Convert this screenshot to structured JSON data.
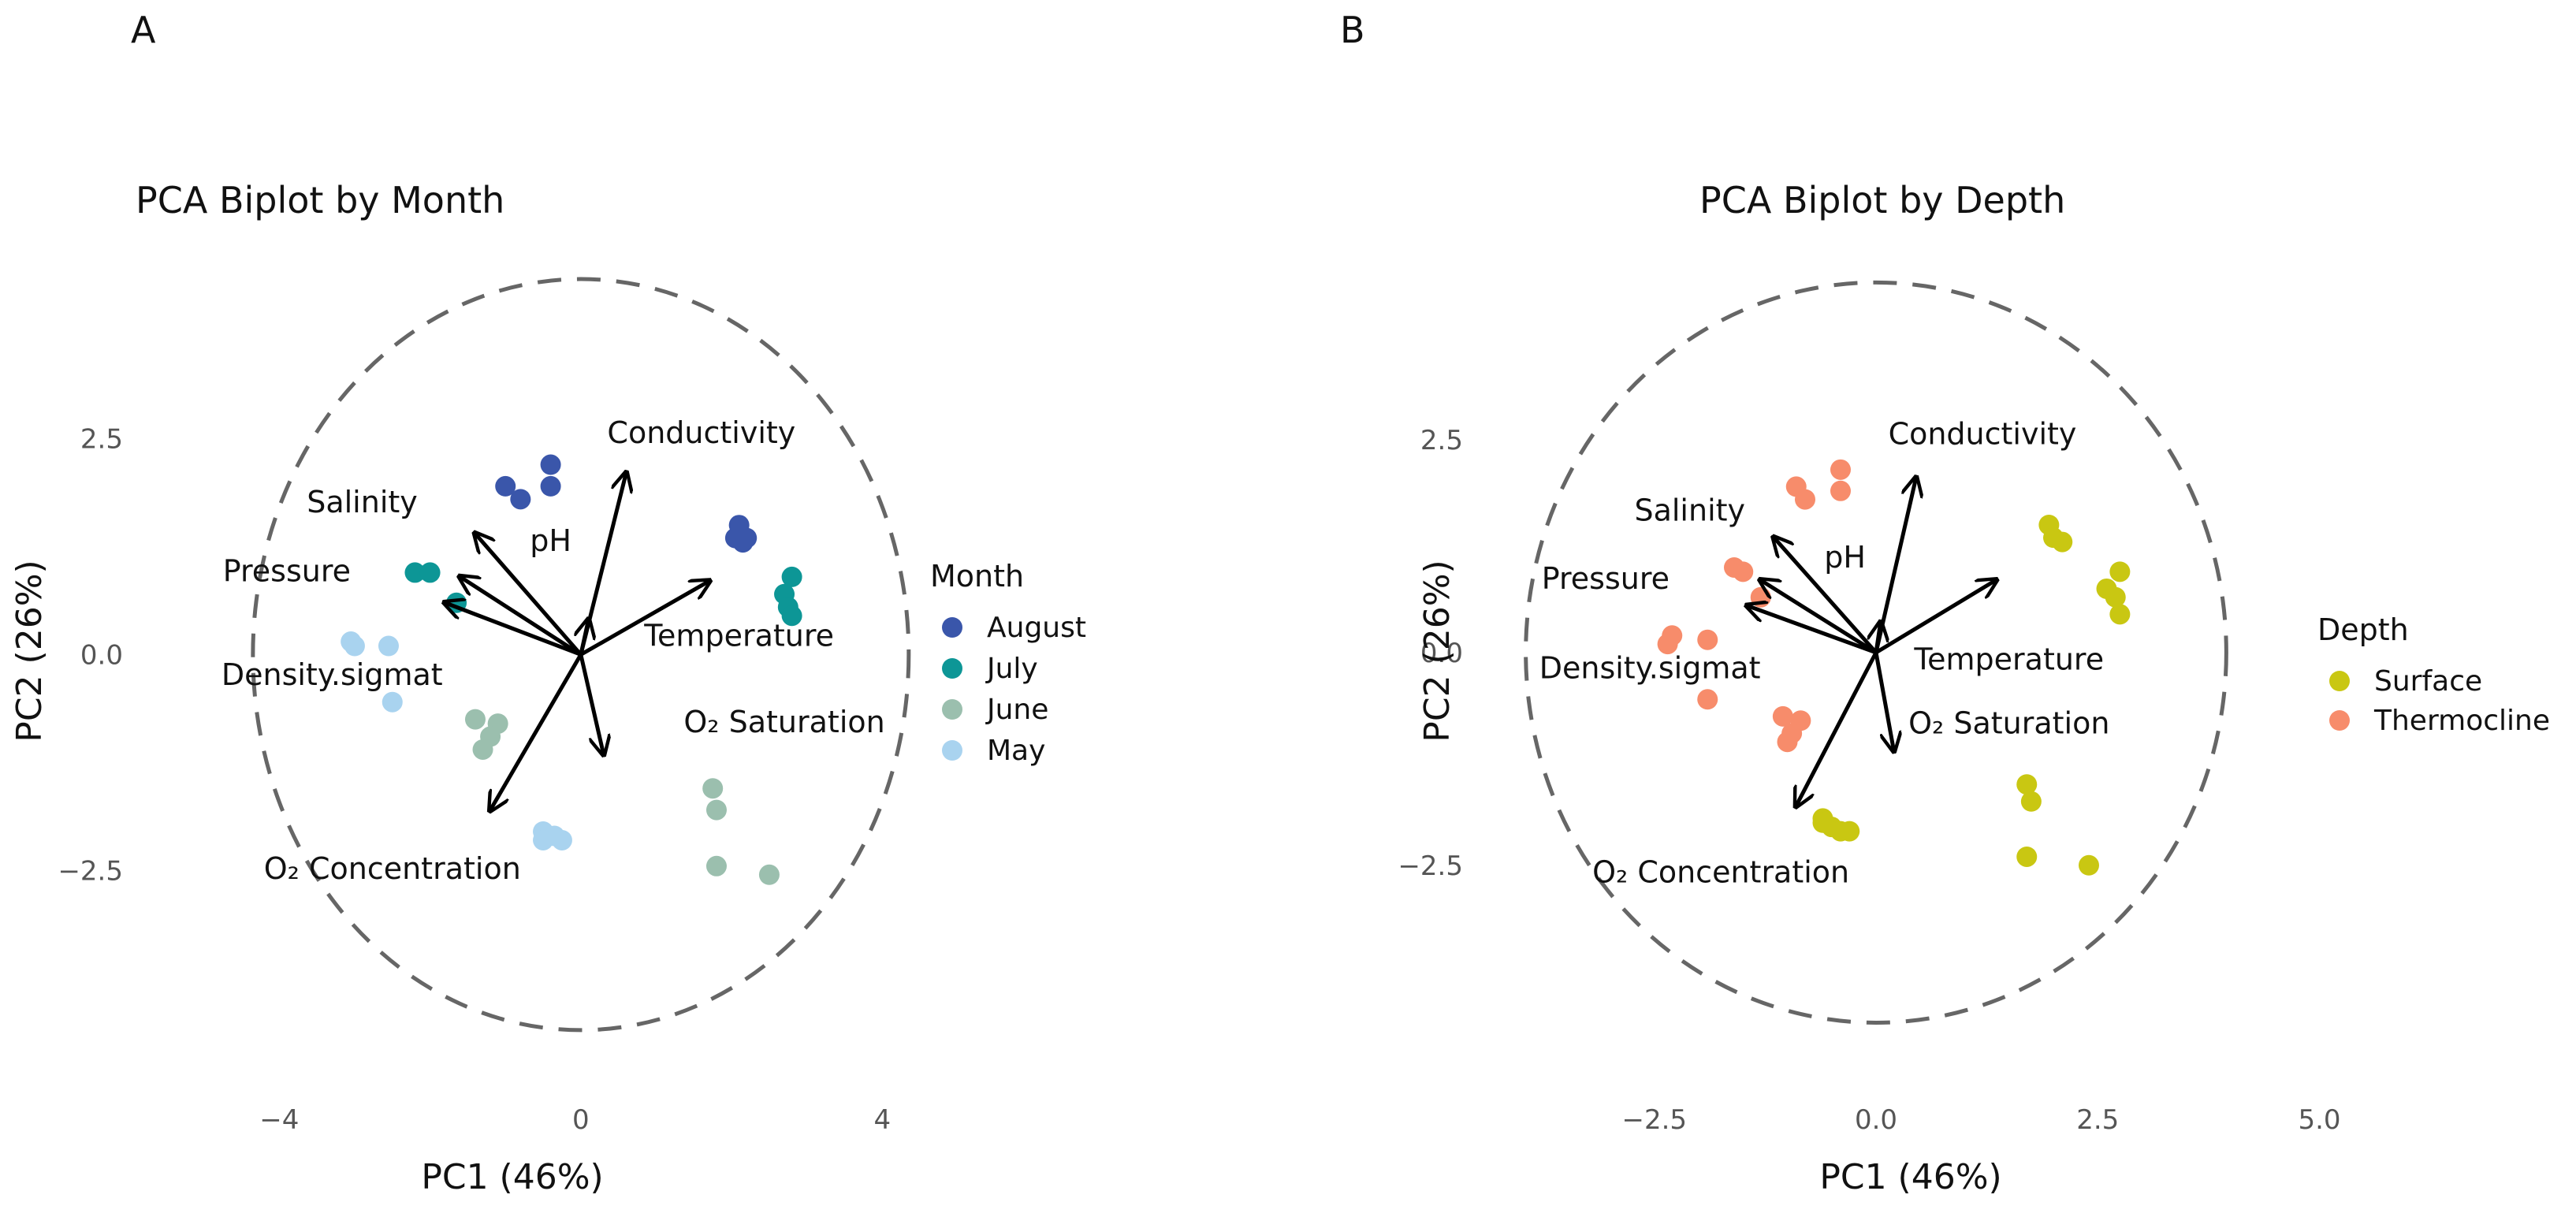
{
  "chart_data": [
    {
      "type": "scatter",
      "panel": "A",
      "title": "PCA Biplot by Month",
      "xlabel": "PC1 (46%)",
      "ylabel": "PC2 (26%)",
      "xlim": [
        -5.3,
        5.0
      ],
      "ylim": [
        -5.2,
        5.3
      ],
      "xticks": [
        {
          "v": -4,
          "t": "−4"
        },
        {
          "v": 0,
          "t": "0"
        },
        {
          "v": 4,
          "t": "4"
        }
      ],
      "yticks": [
        {
          "v": 2.5,
          "t": "2.5"
        },
        {
          "v": 0,
          "t": "0.0"
        },
        {
          "v": -2.5,
          "t": "−2.5"
        }
      ],
      "ellipse": {
        "cx": 0,
        "cy": 0,
        "rx": 4.35,
        "ry": 4.35
      },
      "legend": {
        "title": "Month",
        "entries": [
          {
            "label": "August",
            "color": "#3a56aa"
          },
          {
            "label": "July",
            "color": "#0d9696"
          },
          {
            "label": "June",
            "color": "#9bbfae"
          },
          {
            "label": "May",
            "color": "#a9d3ef"
          }
        ]
      },
      "series": [
        {
          "name": "August",
          "color": "#3a56aa",
          "points": [
            [
              -1.0,
              1.95
            ],
            [
              -0.8,
              1.8
            ],
            [
              -0.4,
              2.2
            ],
            [
              -0.4,
              1.95
            ],
            [
              2.1,
              1.5
            ],
            [
              2.05,
              1.35
            ],
            [
              2.15,
              1.3
            ],
            [
              2.2,
              1.35
            ]
          ]
        },
        {
          "name": "July",
          "color": "#0d9696",
          "points": [
            [
              -2.2,
              0.95
            ],
            [
              -2.0,
              0.95
            ],
            [
              -1.65,
              0.6
            ],
            [
              2.8,
              0.9
            ],
            [
              2.7,
              0.7
            ],
            [
              2.75,
              0.55
            ],
            [
              2.8,
              0.45
            ]
          ]
        },
        {
          "name": "June",
          "color": "#9bbfae",
          "points": [
            [
              -1.4,
              -0.75
            ],
            [
              -1.1,
              -0.8
            ],
            [
              -1.2,
              -0.95
            ],
            [
              -1.3,
              -1.1
            ],
            [
              1.75,
              -1.55
            ],
            [
              1.8,
              -1.8
            ],
            [
              1.8,
              -2.45
            ],
            [
              2.5,
              -2.55
            ]
          ]
        },
        {
          "name": "May",
          "color": "#a9d3ef",
          "points": [
            [
              -3.05,
              0.15
            ],
            [
              -3.0,
              0.1
            ],
            [
              -2.55,
              0.1
            ],
            [
              -2.5,
              -0.55
            ],
            [
              -0.5,
              -2.05
            ],
            [
              -0.35,
              -2.1
            ],
            [
              -0.25,
              -2.15
            ],
            [
              -0.5,
              -2.15
            ]
          ]
        }
      ],
      "loadings": [
        {
          "label": "Conductivity",
          "x": 0.6,
          "y": 2.1,
          "lx": 1.6,
          "ly": 2.45
        },
        {
          "label": "Temperature",
          "x": 1.7,
          "y": 0.85,
          "lx": 2.1,
          "ly": 0.1
        },
        {
          "label": "O₂ Saturation",
          "x": 0.3,
          "y": -1.15,
          "lx": 2.7,
          "ly": -0.9
        },
        {
          "label": "O₂ Concentration",
          "x": -1.2,
          "y": -1.8,
          "lx": -2.5,
          "ly": -2.6
        },
        {
          "label": "Density.sigmat",
          "x": -1.8,
          "y": 0.6,
          "lx": -3.3,
          "ly": -0.35
        },
        {
          "label": "Pressure",
          "x": -1.6,
          "y": 0.9,
          "lx": -3.9,
          "ly": 0.85
        },
        {
          "label": "Salinity",
          "x": -1.4,
          "y": 1.4,
          "lx": -2.9,
          "ly": 1.65
        },
        {
          "label": "pH",
          "x": 0.1,
          "y": 0.4,
          "lx": -0.4,
          "ly": 1.2
        }
      ]
    },
    {
      "type": "scatter",
      "panel": "B",
      "title": "PCA Biplot by Depth",
      "xlabel": "PC1 (46%)",
      "ylabel": "PC2 (26%)",
      "xlim": [
        -4.0,
        5.6
      ],
      "ylim": [
        -5.3,
        5.4
      ],
      "xticks": [
        {
          "v": -2.5,
          "t": "−2.5"
        },
        {
          "v": 0,
          "t": "0.0"
        },
        {
          "v": 2.5,
          "t": "2.5"
        },
        {
          "v": 5,
          "t": "5.0"
        }
      ],
      "yticks": [
        {
          "v": 2.5,
          "t": "2.5"
        },
        {
          "v": 0,
          "t": "0.0"
        },
        {
          "v": -2.5,
          "t": "−2.5"
        }
      ],
      "ellipse": {
        "cx": 0,
        "cy": 0,
        "rx": 3.95,
        "ry": 4.35
      },
      "legend": {
        "title": "Depth",
        "entries": [
          {
            "label": "Surface",
            "color": "#c9c712"
          },
          {
            "label": "Thermocline",
            "color": "#f78c6b"
          }
        ]
      },
      "series": [
        {
          "name": "Surface",
          "color": "#c9c712",
          "points": [
            [
              1.95,
              1.5
            ],
            [
              2.0,
              1.35
            ],
            [
              2.1,
              1.3
            ],
            [
              2.75,
              0.95
            ],
            [
              2.6,
              0.75
            ],
            [
              2.7,
              0.65
            ],
            [
              2.75,
              0.45
            ],
            [
              1.7,
              -1.55
            ],
            [
              1.75,
              -1.75
            ],
            [
              1.7,
              -2.4
            ],
            [
              2.4,
              -2.5
            ],
            [
              -0.6,
              -1.95
            ],
            [
              -0.5,
              -2.05
            ],
            [
              -0.4,
              -2.1
            ],
            [
              -0.3,
              -2.1
            ],
            [
              -0.6,
              -2.0
            ]
          ]
        },
        {
          "name": "Thermocline",
          "color": "#f78c6b",
          "points": [
            [
              -0.4,
              2.15
            ],
            [
              -0.4,
              1.9
            ],
            [
              -0.9,
              1.95
            ],
            [
              -0.8,
              1.8
            ],
            [
              -1.6,
              1.0
            ],
            [
              -1.5,
              0.95
            ],
            [
              -1.3,
              0.65
            ],
            [
              -2.3,
              0.2
            ],
            [
              -2.35,
              0.1
            ],
            [
              -1.9,
              0.15
            ],
            [
              -1.9,
              -0.55
            ],
            [
              -1.05,
              -0.75
            ],
            [
              -0.85,
              -0.8
            ],
            [
              -0.95,
              -0.95
            ],
            [
              -1.0,
              -1.05
            ]
          ]
        }
      ],
      "loadings": [
        {
          "label": "Conductivity",
          "x": 0.45,
          "y": 2.05,
          "lx": 1.2,
          "ly": 2.45
        },
        {
          "label": "Temperature",
          "x": 1.35,
          "y": 0.85,
          "lx": 1.5,
          "ly": -0.2
        },
        {
          "label": "O₂ Saturation",
          "x": 0.2,
          "y": -1.15,
          "lx": 1.5,
          "ly": -0.95
        },
        {
          "label": "O₂ Concentration",
          "x": -0.9,
          "y": -1.8,
          "lx": -1.75,
          "ly": -2.7
        },
        {
          "label": "Density.sigmat",
          "x": -1.45,
          "y": 0.55,
          "lx": -2.55,
          "ly": -0.3
        },
        {
          "label": "Pressure",
          "x": -1.3,
          "y": 0.85,
          "lx": -3.05,
          "ly": 0.75
        },
        {
          "label": "Salinity",
          "x": -1.15,
          "y": 1.35,
          "lx": -2.1,
          "ly": 1.55
        },
        {
          "label": "pH",
          "x": 0.05,
          "y": 0.35,
          "lx": -0.35,
          "ly": 1.0
        }
      ]
    }
  ]
}
